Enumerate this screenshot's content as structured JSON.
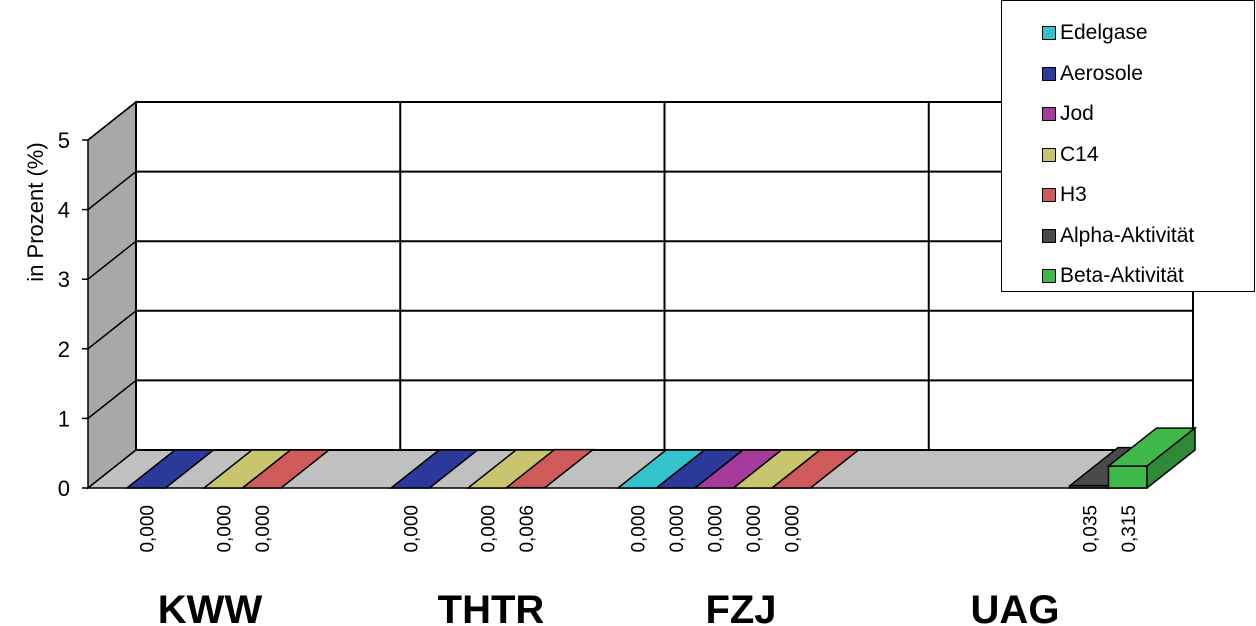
{
  "chart_data": {
    "type": "bar",
    "style": "3d-column",
    "ylabel": "in Prozent (%)",
    "ylim": [
      0,
      5
    ],
    "yticks": [
      "0",
      "1",
      "2",
      "3",
      "4",
      "5"
    ],
    "grid": true,
    "legend_position": "top-right",
    "categories": [
      "KWW",
      "THTR",
      "FZJ",
      "UAG"
    ],
    "series": [
      {
        "name": "Edelgase",
        "color": "#33c3cc",
        "values": [
          null,
          null,
          0.0,
          null
        ],
        "labels": [
          "",
          "",
          "0,000",
          ""
        ]
      },
      {
        "name": "Aerosole",
        "color": "#2b3a9a",
        "values": [
          0.0,
          0.0,
          0.0,
          null
        ],
        "labels": [
          "0,000",
          "0,000",
          "0,000",
          ""
        ]
      },
      {
        "name": "Jod",
        "color": "#a43a9b",
        "values": [
          null,
          null,
          0.0,
          null
        ],
        "labels": [
          "",
          "",
          "0,000",
          ""
        ]
      },
      {
        "name": "C14",
        "color": "#c9c46e",
        "values": [
          0.0,
          0.0,
          0.0,
          null
        ],
        "labels": [
          "0,000",
          "0,000",
          "0,000",
          ""
        ]
      },
      {
        "name": "H3",
        "color": "#cf5a5a",
        "values": [
          0.0,
          0.006,
          0.0,
          null
        ],
        "labels": [
          "0,000",
          "0,006",
          "0,000",
          ""
        ]
      },
      {
        "name": "Alpha-Aktivität",
        "color": "#4a4a4a",
        "values": [
          null,
          null,
          null,
          0.035
        ],
        "labels": [
          "",
          "",
          "",
          "0,035"
        ]
      },
      {
        "name": "Beta-Aktivität",
        "color": "#3fb84a",
        "values": [
          null,
          null,
          null,
          0.315
        ],
        "labels": [
          "",
          "",
          "",
          "0,315"
        ]
      }
    ]
  }
}
